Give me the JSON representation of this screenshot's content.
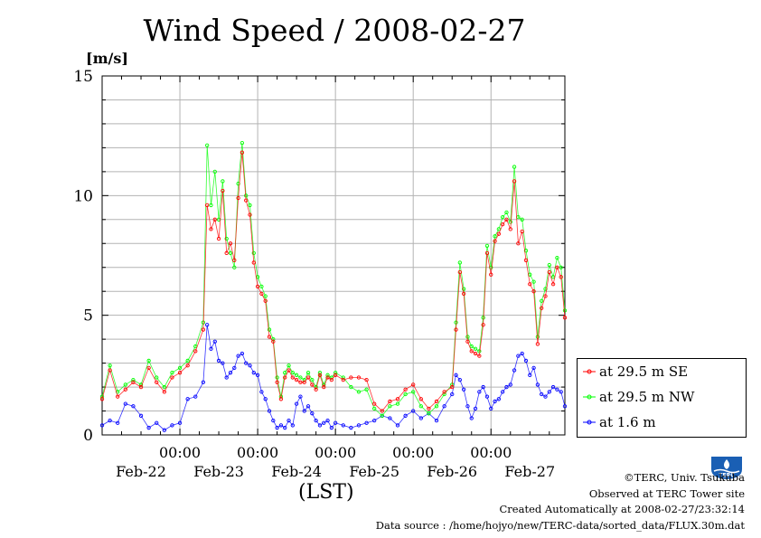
{
  "chart_data": {
    "type": "line",
    "title": "Wind Speed / 2008-02-27",
    "ylabel": "[m/s]",
    "xlabel": "(LST)",
    "ylim": [
      0,
      15
    ],
    "yticks": [
      "0",
      "5",
      "10",
      "15"
    ],
    "x_time_labels": [
      "00:00",
      "00:00",
      "00:00",
      "00:00",
      "00:00"
    ],
    "x_date_labels": [
      "Feb-22",
      "Feb-23",
      "Feb-24",
      "Feb-25",
      "Feb-26",
      "Feb-27"
    ],
    "x_unit": "day index (0 = Feb-22 00:00 LST)",
    "xlim": [
      -1,
      4.95
    ],
    "grid": true,
    "legend_position": "bottom-right outside",
    "series": [
      {
        "name": "at 29.5 m SE",
        "color": "#ff0000",
        "x": [
          -1,
          -0.9,
          -0.8,
          -0.7,
          -0.6,
          -0.5,
          -0.4,
          -0.3,
          -0.2,
          -0.1,
          0,
          0.1,
          0.2,
          0.3,
          0.35,
          0.4,
          0.45,
          0.5,
          0.55,
          0.6,
          0.65,
          0.7,
          0.75,
          0.8,
          0.85,
          0.9,
          0.95,
          1.0,
          1.05,
          1.1,
          1.15,
          1.2,
          1.25,
          1.3,
          1.35,
          1.4,
          1.45,
          1.5,
          1.55,
          1.6,
          1.65,
          1.7,
          1.75,
          1.8,
          1.85,
          1.9,
          1.95,
          2.0,
          2.1,
          2.2,
          2.3,
          2.4,
          2.5,
          2.6,
          2.7,
          2.8,
          2.9,
          3.0,
          3.1,
          3.2,
          3.3,
          3.4,
          3.5,
          3.55,
          3.6,
          3.65,
          3.7,
          3.75,
          3.8,
          3.85,
          3.9,
          3.95,
          4.0,
          4.05,
          4.1,
          4.15,
          4.2,
          4.25,
          4.3,
          4.35,
          4.4,
          4.45,
          4.5,
          4.55,
          4.6,
          4.65,
          4.7,
          4.75,
          4.8,
          4.85,
          4.9,
          4.95
        ],
        "y": [
          1.5,
          2.7,
          1.6,
          1.9,
          2.2,
          2.0,
          2.8,
          2.2,
          1.8,
          2.4,
          2.6,
          2.9,
          3.5,
          4.4,
          9.6,
          8.6,
          9.0,
          8.2,
          10.2,
          7.6,
          8.0,
          7.3,
          9.9,
          11.8,
          9.8,
          9.2,
          7.2,
          6.2,
          5.9,
          5.6,
          4.1,
          3.9,
          2.2,
          1.5,
          2.4,
          2.7,
          2.4,
          2.3,
          2.2,
          2.2,
          2.4,
          2.1,
          1.9,
          2.5,
          2.0,
          2.4,
          2.3,
          2.5,
          2.3,
          2.4,
          2.4,
          2.3,
          1.3,
          1.0,
          1.4,
          1.5,
          1.9,
          2.1,
          1.5,
          1.1,
          1.4,
          1.8,
          2.0,
          4.4,
          6.8,
          5.9,
          3.9,
          3.5,
          3.4,
          3.3,
          4.6,
          7.6,
          6.7,
          8.1,
          8.4,
          8.8,
          9.0,
          8.6,
          10.6,
          8.0,
          8.5,
          7.3,
          6.3,
          6.0,
          3.8,
          5.3,
          5.8,
          6.8,
          6.3,
          7.0,
          6.6,
          4.9
        ]
      },
      {
        "name": "at 29.5 m NW",
        "color": "#00ff00",
        "x": [
          -1,
          -0.9,
          -0.8,
          -0.7,
          -0.6,
          -0.5,
          -0.4,
          -0.3,
          -0.2,
          -0.1,
          0,
          0.1,
          0.2,
          0.3,
          0.35,
          0.4,
          0.45,
          0.5,
          0.55,
          0.6,
          0.65,
          0.7,
          0.75,
          0.8,
          0.85,
          0.9,
          0.95,
          1.0,
          1.05,
          1.1,
          1.15,
          1.2,
          1.25,
          1.3,
          1.35,
          1.4,
          1.45,
          1.5,
          1.55,
          1.6,
          1.65,
          1.7,
          1.75,
          1.8,
          1.85,
          1.9,
          1.95,
          2.0,
          2.1,
          2.2,
          2.3,
          2.4,
          2.5,
          2.6,
          2.7,
          2.8,
          2.9,
          3.0,
          3.1,
          3.2,
          3.3,
          3.4,
          3.5,
          3.55,
          3.6,
          3.65,
          3.7,
          3.75,
          3.8,
          3.85,
          3.9,
          3.95,
          4.0,
          4.05,
          4.1,
          4.15,
          4.2,
          4.25,
          4.3,
          4.35,
          4.4,
          4.45,
          4.5,
          4.55,
          4.6,
          4.65,
          4.7,
          4.75,
          4.8,
          4.85,
          4.9,
          4.95
        ],
        "y": [
          1.6,
          2.9,
          1.8,
          2.1,
          2.3,
          2.1,
          3.1,
          2.4,
          2.0,
          2.6,
          2.8,
          3.1,
          3.7,
          4.7,
          12.1,
          9.6,
          11.0,
          9.0,
          10.6,
          8.2,
          7.6,
          7.0,
          10.5,
          12.2,
          10.0,
          9.6,
          7.6,
          6.6,
          6.2,
          5.8,
          4.4,
          4.0,
          2.4,
          1.6,
          2.6,
          2.9,
          2.6,
          2.5,
          2.4,
          2.3,
          2.6,
          2.3,
          2.0,
          2.6,
          2.1,
          2.5,
          2.4,
          2.6,
          2.4,
          2.0,
          1.8,
          1.9,
          1.1,
          0.8,
          1.2,
          1.3,
          1.7,
          1.8,
          1.2,
          0.9,
          1.2,
          1.7,
          2.1,
          4.7,
          7.2,
          6.1,
          4.1,
          3.7,
          3.6,
          3.5,
          4.9,
          7.9,
          7.0,
          8.3,
          8.6,
          9.1,
          9.3,
          8.9,
          11.2,
          9.1,
          9.0,
          7.7,
          6.7,
          6.4,
          4.1,
          5.6,
          6.1,
          7.1,
          6.6,
          7.4,
          7.0,
          5.2
        ]
      },
      {
        "name": "at 1.6 m",
        "color": "#0000ff",
        "x": [
          -1,
          -0.9,
          -0.8,
          -0.7,
          -0.6,
          -0.5,
          -0.4,
          -0.3,
          -0.2,
          -0.1,
          0,
          0.1,
          0.2,
          0.3,
          0.35,
          0.4,
          0.45,
          0.5,
          0.55,
          0.6,
          0.65,
          0.7,
          0.75,
          0.8,
          0.85,
          0.9,
          0.95,
          1.0,
          1.05,
          1.1,
          1.15,
          1.2,
          1.25,
          1.3,
          1.35,
          1.4,
          1.45,
          1.5,
          1.55,
          1.6,
          1.65,
          1.7,
          1.75,
          1.8,
          1.85,
          1.9,
          1.95,
          2.0,
          2.1,
          2.2,
          2.3,
          2.4,
          2.5,
          2.6,
          2.7,
          2.8,
          2.9,
          3.0,
          3.1,
          3.2,
          3.3,
          3.4,
          3.5,
          3.55,
          3.6,
          3.65,
          3.7,
          3.75,
          3.8,
          3.85,
          3.9,
          3.95,
          4.0,
          4.05,
          4.1,
          4.15,
          4.2,
          4.25,
          4.3,
          4.35,
          4.4,
          4.45,
          4.5,
          4.55,
          4.6,
          4.65,
          4.7,
          4.75,
          4.8,
          4.85,
          4.9,
          4.95
        ],
        "y": [
          0.4,
          0.6,
          0.5,
          1.3,
          1.2,
          0.8,
          0.3,
          0.5,
          0.2,
          0.4,
          0.5,
          1.5,
          1.6,
          2.2,
          4.6,
          3.6,
          3.9,
          3.1,
          3.0,
          2.4,
          2.6,
          2.8,
          3.3,
          3.4,
          3.0,
          2.9,
          2.6,
          2.5,
          1.8,
          1.5,
          1.0,
          0.6,
          0.3,
          0.4,
          0.3,
          0.6,
          0.4,
          1.3,
          1.6,
          1.0,
          1.2,
          0.9,
          0.6,
          0.4,
          0.5,
          0.6,
          0.3,
          0.5,
          0.4,
          0.3,
          0.4,
          0.5,
          0.6,
          0.8,
          0.7,
          0.4,
          0.8,
          1.0,
          0.7,
          0.9,
          0.6,
          1.2,
          1.7,
          2.5,
          2.3,
          1.9,
          1.2,
          0.7,
          1.1,
          1.8,
          2.0,
          1.6,
          1.1,
          1.4,
          1.5,
          1.8,
          2.0,
          2.1,
          2.7,
          3.3,
          3.4,
          3.1,
          2.5,
          2.8,
          2.1,
          1.7,
          1.6,
          1.8,
          2.0,
          1.9,
          1.8,
          1.2
        ]
      }
    ]
  },
  "credits": {
    "copyright": "©TERC, Univ. Tsukuba",
    "observed": "Observed at TERC Tower site",
    "created": "Created Automatically at 2008-02-27/23:32:14",
    "source": "Data source : /home/hojyo/new/TERC-data/sorted_data/FLUX.30m.dat"
  },
  "logo_text": "TERC"
}
